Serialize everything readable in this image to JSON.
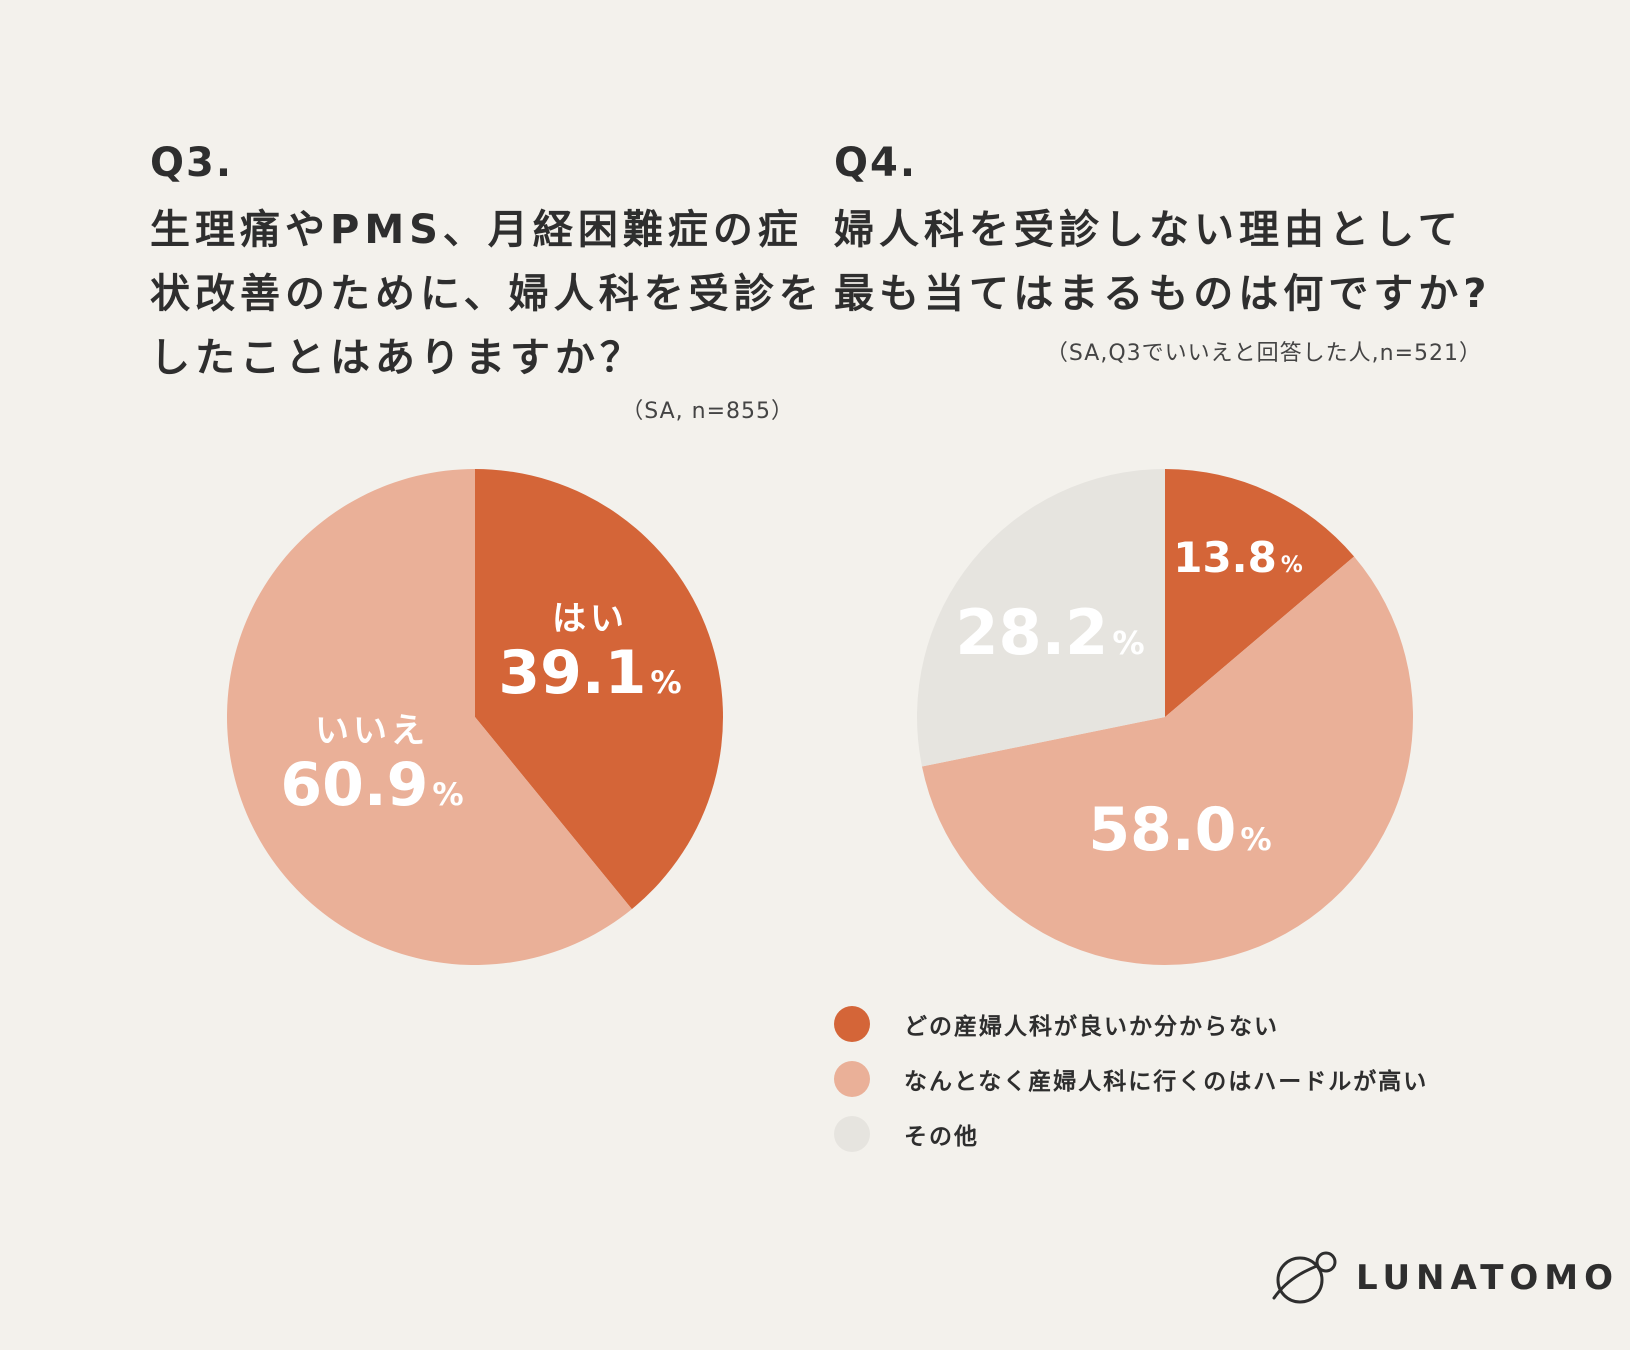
{
  "colors": {
    "background": "#f3f1ec",
    "series_dark": "#d46538",
    "series_light": "#eab098",
    "series_grey": "#e6e4df"
  },
  "chart_data": [
    {
      "type": "pie",
      "title": "Q3.",
      "subtitle": [
        "生理痛やPMS、月経困難症の症",
        "状改善のために、婦人科を受診を",
        "したことはありますか？"
      ],
      "note": "（SA, n=855）",
      "slices": [
        {
          "label": "はい",
          "value": 39.1,
          "value_text": "39.1",
          "color": "#d46538"
        },
        {
          "label": "いいえ",
          "value": 60.9,
          "value_text": "60.9",
          "color": "#eab098"
        }
      ],
      "unit": "%"
    },
    {
      "type": "pie",
      "title": "Q4.",
      "subtitle": [
        "婦人科を受診しない理由として",
        "最も当てはまるものは何ですか?"
      ],
      "note": "（SA,Q3でいいえと回答した人,n=521）",
      "slices": [
        {
          "label": "どの産婦人科が良いか分からない",
          "value": 13.8,
          "value_text": "13.8",
          "color": "#d46538"
        },
        {
          "label": "なんとなく産婦人科に行くのはハードルが高い",
          "value": 58.0,
          "value_text": "58.0",
          "color": "#eab098"
        },
        {
          "label": "その他",
          "value": 28.2,
          "value_text": "28.2",
          "color": "#e6e4df"
        }
      ],
      "unit": "%",
      "legend": [
        "どの産婦人科が良いか分からない",
        "なんとなく産婦人科に行くのはハードルが高い",
        "その他"
      ]
    }
  ],
  "brand": {
    "name": "LUNATOMO",
    "logo_icon": "planet-orbit-icon"
  }
}
